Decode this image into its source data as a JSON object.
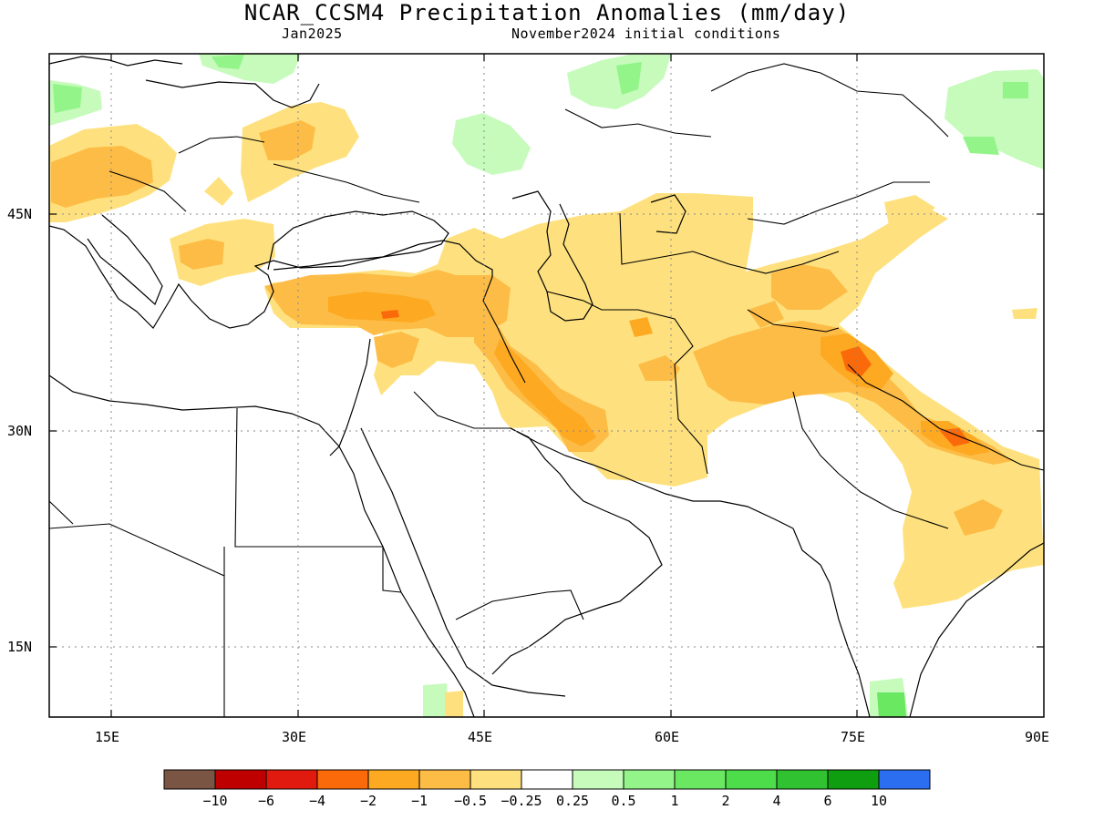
{
  "title": "NCAR_CCSM4 Precipitation Anomalies (mm/day)",
  "subtitle_left": "Jan2025",
  "subtitle_right": "November2024 initial conditions",
  "map": {
    "lat_ticks": [
      "45N",
      "30N",
      "15N"
    ],
    "lon_ticks": [
      "15E",
      "30E",
      "45E",
      "60E",
      "75E",
      "90E"
    ],
    "lon_range": [
      10,
      90
    ],
    "lat_range": [
      10,
      56
    ],
    "gridlines": "dotted"
  },
  "colorbar": {
    "labels": [
      "−10",
      "−6",
      "−4",
      "−2",
      "−1",
      "−0.5",
      "−0.25",
      "0.25",
      "0.5",
      "1",
      "2",
      "4",
      "6",
      "10"
    ],
    "colors": [
      "#7a5543",
      "#bf0000",
      "#e01a0f",
      "#fb6a0a",
      "#fda922",
      "#fdbc46",
      "#fee17e",
      "#ffffff",
      "#c6fbbc",
      "#93f489",
      "#6ae862",
      "#4ddc4a",
      "#30c230",
      "#0f9e0f",
      "#2b6ff0"
    ]
  }
}
